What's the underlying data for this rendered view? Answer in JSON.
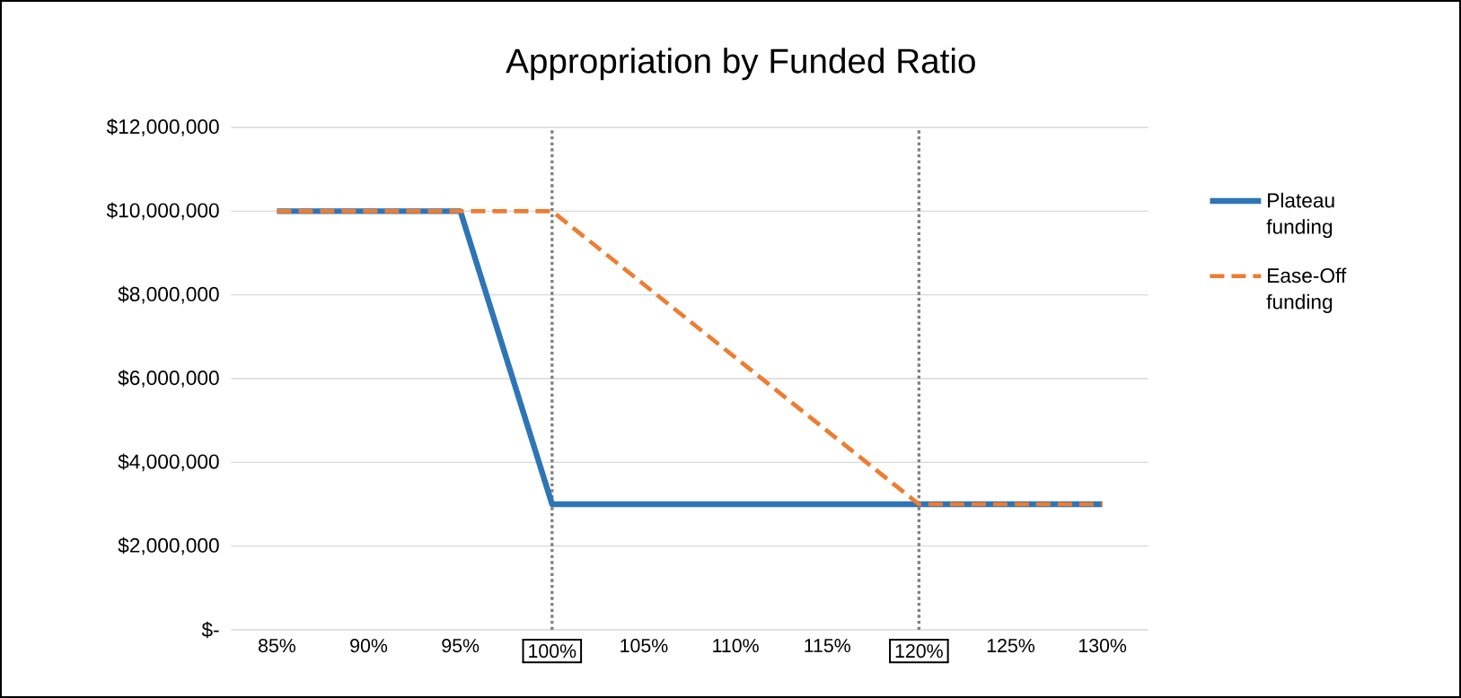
{
  "chart_data": {
    "type": "line",
    "title": "Appropriation by Funded Ratio",
    "categories": [
      "85%",
      "90%",
      "95%",
      "100%",
      "105%",
      "110%",
      "115%",
      "120%",
      "125%",
      "130%"
    ],
    "series": [
      {
        "name": "Plateau funding",
        "color": "#2e75b6",
        "line_style": "solid",
        "values": [
          10000000,
          10000000,
          10000000,
          3000000,
          3000000,
          3000000,
          3000000,
          3000000,
          3000000,
          3000000
        ]
      },
      {
        "name": "Ease-Off funding",
        "color": "#ed7d31",
        "line_style": "dashed",
        "values": [
          10000000,
          10000000,
          10000000,
          10000000,
          8250000,
          6500000,
          4750000,
          3000000,
          3000000,
          3000000
        ]
      }
    ],
    "ylim": [
      0,
      12000000
    ],
    "yticks": [
      {
        "value": 0,
        "label": "$-"
      },
      {
        "value": 2000000,
        "label": "$2,000,000"
      },
      {
        "value": 4000000,
        "label": "$4,000,000"
      },
      {
        "value": 6000000,
        "label": "$6,000,000"
      },
      {
        "value": 8000000,
        "label": "$8,000,000"
      },
      {
        "value": 10000000,
        "label": "$10,000,000"
      },
      {
        "value": 12000000,
        "label": "$12,000,000"
      }
    ],
    "ref_lines": [
      {
        "axis": "x",
        "value": "100%",
        "color": "#808080",
        "line_style": "dotted"
      },
      {
        "axis": "x",
        "value": "120%",
        "color": "#808080",
        "line_style": "dotted"
      }
    ],
    "grid": "y",
    "legend": "right",
    "marker": "none"
  }
}
